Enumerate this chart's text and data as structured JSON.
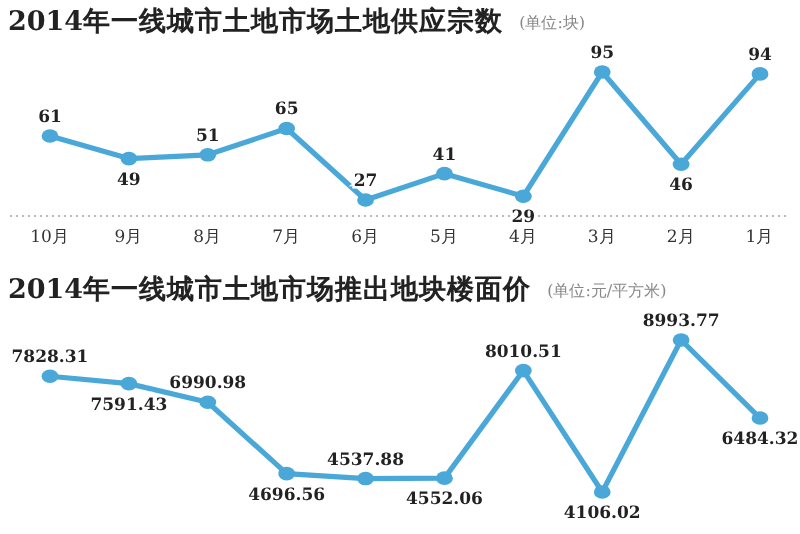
{
  "chart_data": [
    {
      "type": "line",
      "title": "2014年一线城市土地市场土地供应宗数",
      "annotations": [
        "(单位:块)"
      ],
      "categories": [
        "10月",
        "9月",
        "8月",
        "7月",
        "6月",
        "5月",
        "4月",
        "3月",
        "2月",
        "1月"
      ],
      "series": [
        {
          "color": "#4aa8d8",
          "values": [
            61,
            49,
            51,
            65,
            27,
            41,
            29,
            95,
            46,
            94
          ]
        }
      ],
      "data_labels": true,
      "marker": "circle"
    },
    {
      "type": "line",
      "title": "2014年一线城市土地市场推出地块楼面价",
      "annotations": [
        "(单位:元/平方米)"
      ],
      "categories": [
        null,
        null,
        null,
        null,
        null,
        null,
        null,
        null,
        null,
        null
      ],
      "series": [
        {
          "color": "#4aa8d8",
          "values": [
            7828.31,
            7591.43,
            6990.98,
            4696.56,
            4537.88,
            4552.06,
            8010.51,
            4106.02,
            8993.77,
            6484.32
          ]
        }
      ],
      "data_labels": true,
      "marker": "circle"
    }
  ]
}
